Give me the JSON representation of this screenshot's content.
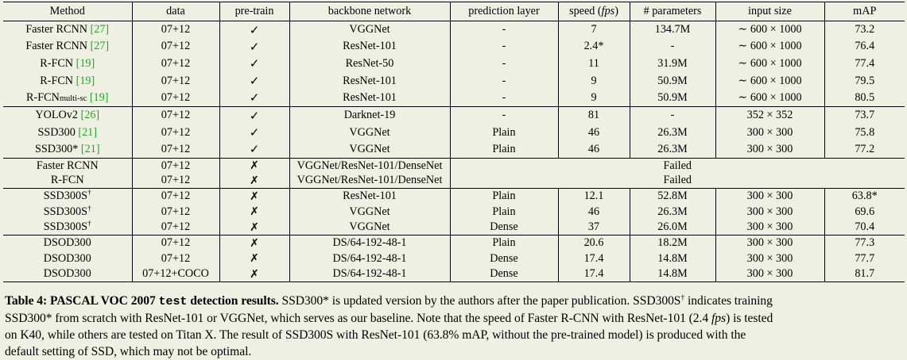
{
  "table": {
    "headers": [
      "Method",
      "data",
      "pre-train",
      "backbone network",
      "prediction layer",
      "speed (",
      "fps",
      ")",
      "# parameters",
      "input size",
      "mAP"
    ],
    "groups": [
      [
        {
          "method": "Faster RCNN ",
          "method_sub": "",
          "method_sup": "",
          "ref": "[27]",
          "data": "07+12",
          "pretrain": "✓",
          "backbone": "VGGNet",
          "pred": "-",
          "speed": "7",
          "params": "134.7M",
          "input": "∼ 600 × 1000",
          "map": "73.2"
        },
        {
          "method": "Faster RCNN ",
          "method_sub": "",
          "method_sup": "",
          "ref": "[27]",
          "data": "07+12",
          "pretrain": "✓",
          "backbone": "ResNet-101",
          "pred": "-",
          "speed": "2.4*",
          "params": "-",
          "input": "∼ 600 × 1000",
          "map": "76.4"
        },
        {
          "method": "R-FCN ",
          "method_sub": "",
          "method_sup": "",
          "ref": "[19]",
          "data": "07+12",
          "pretrain": "✓",
          "backbone": "ResNet-50",
          "pred": "-",
          "speed": "11",
          "params": "31.9M",
          "input": "∼ 600 × 1000",
          "map": "77.4"
        },
        {
          "method": "R-FCN ",
          "method_sub": "",
          "method_sup": "",
          "ref": "[19]",
          "data": "07+12",
          "pretrain": "✓",
          "backbone": "ResNet-101",
          "pred": "-",
          "speed": "9",
          "params": "50.9M",
          "input": "∼ 600 × 1000",
          "map": "79.5"
        },
        {
          "method": "R-FCN",
          "method_sub": "multi-sc",
          "method_sup": "",
          "ref": " [19]",
          "data": "07+12",
          "pretrain": "✓",
          "backbone": "ResNet-101",
          "pred": "-",
          "speed": "9",
          "params": "50.9M",
          "input": "∼ 600 × 1000",
          "map": "80.5"
        }
      ],
      [
        {
          "method": "YOLOv2 ",
          "method_sub": "",
          "method_sup": "",
          "ref": "[26]",
          "data": "07+12",
          "pretrain": "✓",
          "backbone": "Darknet-19",
          "pred": "-",
          "speed": "81",
          "params": "-",
          "input": "352 × 352",
          "map": "73.7"
        },
        {
          "method": "SSD300 ",
          "method_sub": "",
          "method_sup": "",
          "ref": "[21]",
          "data": "07+12",
          "pretrain": "✓",
          "backbone": "VGGNet",
          "pred": "Plain",
          "speed": "46",
          "params": "26.3M",
          "input": "300 × 300",
          "map": "75.8"
        },
        {
          "method": "SSD300* ",
          "method_sub": "",
          "method_sup": "",
          "ref": "[21]",
          "data": "07+12",
          "pretrain": "✓",
          "backbone": "VGGNet",
          "pred": "Plain",
          "speed": "46",
          "params": "26.3M",
          "input": "300 × 300",
          "map": "77.2"
        }
      ],
      [
        {
          "method": "Faster RCNN",
          "method_sub": "",
          "method_sup": "",
          "ref": "",
          "data": "07+12",
          "pretrain": "✗",
          "backbone": "VGGNet/ResNet-101/DenseNet",
          "failed": "Failed"
        },
        {
          "method": "R-FCN",
          "method_sub": "",
          "method_sup": "",
          "ref": "",
          "data": "07+12",
          "pretrain": "✗",
          "backbone": "VGGNet/ResNet-101/DenseNet",
          "failed": "Failed"
        }
      ],
      [
        {
          "method": "SSD300S",
          "method_sub": "",
          "method_sup": "†",
          "ref": "",
          "data": "07+12",
          "pretrain": "✗",
          "backbone": "ResNet-101",
          "pred": "Plain",
          "speed": "12.1",
          "params": "52.8M",
          "input": "300 × 300",
          "map": "63.8*"
        },
        {
          "method": "SSD300S",
          "method_sub": "",
          "method_sup": "†",
          "ref": "",
          "data": "07+12",
          "pretrain": "✗",
          "backbone": "VGGNet",
          "pred": "Plain",
          "speed": "46",
          "params": "26.3M",
          "input": "300 × 300",
          "map": "69.6"
        },
        {
          "method": "SSD300S",
          "method_sub": "",
          "method_sup": "†",
          "ref": "",
          "data": "07+12",
          "pretrain": "✗",
          "backbone": "VGGNet",
          "pred": "Dense",
          "speed": "37",
          "params": "26.0M",
          "input": "300 × 300",
          "map": "70.4"
        }
      ],
      [
        {
          "method": "DSOD300",
          "method_sub": "",
          "method_sup": "",
          "ref": "",
          "data": "07+12",
          "pretrain": "✗",
          "backbone": "DS/64-192-48-1",
          "pred": "Plain",
          "speed": "20.6",
          "params": "18.2M",
          "input": "300 × 300",
          "map": "77.3"
        },
        {
          "method": "DSOD300",
          "method_sub": "",
          "method_sup": "",
          "ref": "",
          "data": "07+12",
          "pretrain": "✗",
          "backbone": "DS/64-192-48-1",
          "pred": "Dense",
          "speed": "17.4",
          "params": "14.8M",
          "input": "300 × 300",
          "map": "77.7"
        },
        {
          "method": "DSOD300",
          "method_sub": "",
          "method_sup": "",
          "ref": "",
          "data": "07+12+COCO",
          "pretrain": "✗",
          "backbone": "DS/64-192-48-1",
          "pred": "Dense",
          "speed": "17.4",
          "params": "14.8M",
          "input": "300 × 300",
          "map": "81.7"
        }
      ]
    ]
  },
  "caption": {
    "lines": [
      [
        {
          "t": "Table 4: ",
          "s": "b"
        },
        {
          "t": "PASCAL VOC 2007 ",
          "s": "b"
        },
        {
          "t": "test",
          "s": "tt"
        },
        {
          "t": " detection results.",
          "s": "b"
        },
        {
          "t": " SSD300* is updated version by the authors after the paper publication. SSD300S",
          "s": ""
        },
        {
          "t": "†",
          "s": "sup"
        },
        {
          "t": " indicates training",
          "s": ""
        }
      ],
      [
        {
          "t": "SSD300* from scratch with ResNet-101 or VGGNet, which serves as our baseline. Note that the speed of Faster R-CNN with ResNet-101 (2.4 ",
          "s": ""
        },
        {
          "t": "fps",
          "s": "i"
        },
        {
          "t": ") is tested",
          "s": ""
        }
      ],
      [
        {
          "t": "on K40, while others are tested on Titan X. The result of SSD300S with ResNet-101 (63.8% mAP, without the pre-trained model) is produced with the",
          "s": ""
        }
      ],
      [
        {
          "t": "default setting of SSD, which may not be optimal.",
          "s": ""
        }
      ]
    ]
  },
  "colors": {
    "background": "#eff0e4",
    "reference": "#22a822",
    "text": "#000000"
  }
}
